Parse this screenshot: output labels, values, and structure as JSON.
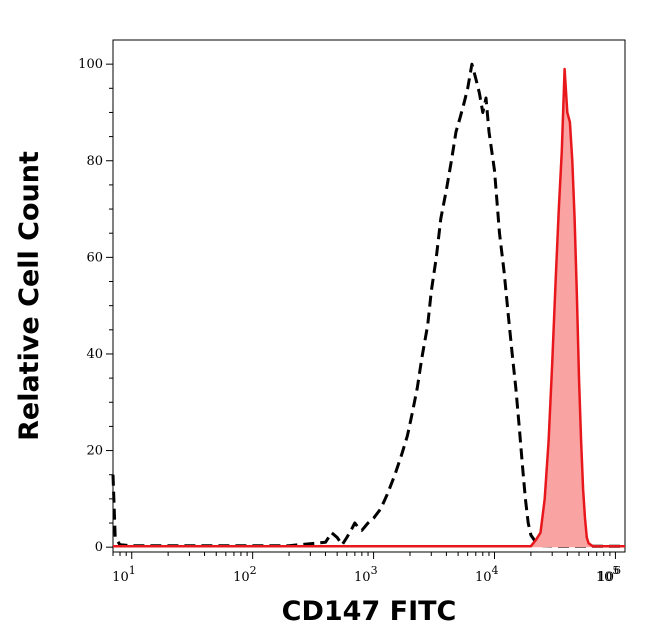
{
  "chart_data": {
    "type": "area",
    "xlabel": "CD147 FITC",
    "ylabel": "Relative Cell Count",
    "xscale": "log",
    "xlim": [
      7,
      120000
    ],
    "ylim": [
      -1,
      105
    ],
    "x_ticks": [
      {
        "value": 10,
        "base": "10",
        "exp": "1"
      },
      {
        "value": 100,
        "base": "10",
        "exp": "2"
      },
      {
        "value": 1000,
        "base": "10",
        "exp": "3"
      },
      {
        "value": 10000,
        "base": "10",
        "exp": "4"
      },
      {
        "value": 100000,
        "base": "10",
        "exp": "5"
      },
      {
        "value": 1000000,
        "base": "10",
        "exp": "6"
      }
    ],
    "y_ticks": [
      0,
      20,
      40,
      60,
      80,
      100
    ],
    "grid": false,
    "legend": "none",
    "series": [
      {
        "style": "dashed",
        "color": "#000000",
        "fill": "none",
        "points": [
          [
            7,
            15
          ],
          [
            7.3,
            2
          ],
          [
            8,
            0.5
          ],
          [
            10,
            0.3
          ],
          [
            20,
            0.3
          ],
          [
            60,
            0.3
          ],
          [
            200,
            0.3
          ],
          [
            400,
            1
          ],
          [
            450,
            3
          ],
          [
            500,
            2
          ],
          [
            550,
            0.5
          ],
          [
            600,
            2
          ],
          [
            650,
            3.5
          ],
          [
            700,
            5
          ],
          [
            750,
            4
          ],
          [
            800,
            3.5
          ],
          [
            900,
            5
          ],
          [
            1000,
            6
          ],
          [
            1150,
            8
          ],
          [
            1300,
            11
          ],
          [
            1500,
            15
          ],
          [
            1700,
            19
          ],
          [
            1900,
            23
          ],
          [
            2100,
            28
          ],
          [
            2300,
            33
          ],
          [
            2500,
            39
          ],
          [
            2800,
            46
          ],
          [
            3000,
            53
          ],
          [
            3300,
            60
          ],
          [
            3600,
            68
          ],
          [
            4000,
            74
          ],
          [
            4400,
            80
          ],
          [
            4800,
            86
          ],
          [
            5200,
            89
          ],
          [
            5600,
            92
          ],
          [
            6000,
            95
          ],
          [
            6500,
            100
          ],
          [
            7000,
            97
          ],
          [
            7500,
            94
          ],
          [
            8000,
            90
          ],
          [
            8500,
            93
          ],
          [
            9000,
            86
          ],
          [
            10000,
            78
          ],
          [
            11000,
            65
          ],
          [
            12000,
            57
          ],
          [
            13000,
            48
          ],
          [
            14000,
            40
          ],
          [
            15000,
            33
          ],
          [
            16000,
            25
          ],
          [
            17000,
            17
          ],
          [
            18000,
            10
          ],
          [
            19000,
            5
          ],
          [
            20000,
            2.5
          ],
          [
            22000,
            1
          ],
          [
            25000,
            0.3
          ],
          [
            30000,
            0.2
          ],
          [
            50000,
            0.2
          ],
          [
            1100000,
            0.2
          ]
        ]
      },
      {
        "style": "solid",
        "color": "#e8171c",
        "fill": "#f9a3a3",
        "points": [
          [
            7,
            0.2
          ],
          [
            20000,
            0.2
          ],
          [
            22000,
            1.5
          ],
          [
            24000,
            3
          ],
          [
            26000,
            10
          ],
          [
            28000,
            22
          ],
          [
            30000,
            38
          ],
          [
            32000,
            55
          ],
          [
            34000,
            70
          ],
          [
            36000,
            82
          ],
          [
            38000,
            99
          ],
          [
            40000,
            90
          ],
          [
            42000,
            88
          ],
          [
            44000,
            80
          ],
          [
            46000,
            68
          ],
          [
            48000,
            52
          ],
          [
            50000,
            35
          ],
          [
            52000,
            22
          ],
          [
            54000,
            12
          ],
          [
            56000,
            6
          ],
          [
            58000,
            2
          ],
          [
            60000,
            0.8
          ],
          [
            65000,
            0.2
          ],
          [
            1100000,
            0.2
          ]
        ]
      }
    ]
  }
}
